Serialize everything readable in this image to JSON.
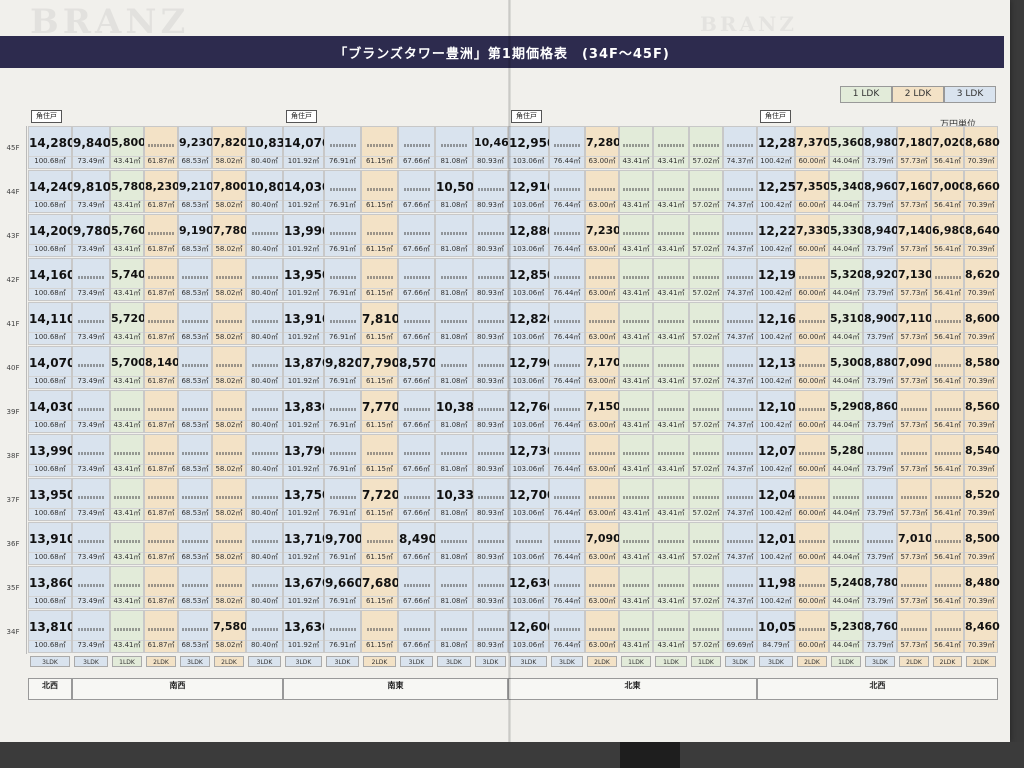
{
  "title": "「ブランズタワー豊洲」第1期価格表　(34F～45F)",
  "watermark": "BRANZ",
  "legend": [
    {
      "label": "1 LDK",
      "color": "#e2ebd9"
    },
    {
      "label": "2 LDK",
      "color": "#f3e2c6"
    },
    {
      "label": "3 LDK",
      "color": "#d9e3ee"
    }
  ],
  "unit_label": "万円単位",
  "corner_label": "角住戸",
  "columns": [
    {
      "area": "100.68㎡",
      "type": "3",
      "w": 44
    },
    {
      "area": "73.49㎡",
      "type": "3",
      "w": 38
    },
    {
      "area": "43.41㎡",
      "type": "1",
      "w": 34
    },
    {
      "area": "61.87㎡",
      "type": "2",
      "w": 34
    },
    {
      "area": "68.53㎡",
      "type": "3",
      "w": 34
    },
    {
      "area": "58.02㎡",
      "type": "2",
      "w": 34
    },
    {
      "area": "80.40㎡",
      "type": "3",
      "w": 37
    },
    {
      "area": "101.92㎡",
      "type": "3",
      "w": 41
    },
    {
      "area": "76.91㎡",
      "type": "3",
      "w": 37
    },
    {
      "area": "61.15㎡",
      "type": "2",
      "w": 37
    },
    {
      "area": "67.66㎡",
      "type": "3",
      "w": 37
    },
    {
      "area": "81.08㎡",
      "type": "3",
      "w": 38
    },
    {
      "area": "80.93㎡",
      "type": "3",
      "w": 35
    },
    {
      "area": "103.06㎡",
      "type": "3",
      "w": 41
    },
    {
      "area": "76.44㎡",
      "type": "3",
      "w": 36
    },
    {
      "area": "63.00㎡",
      "type": "2",
      "w": 34
    },
    {
      "area": "43.41㎡",
      "type": "1",
      "w": 34
    },
    {
      "area": "43.41㎡",
      "type": "1",
      "w": 36
    },
    {
      "area": "57.02㎡",
      "type": "1",
      "w": 34
    },
    {
      "area": "74.37㎡",
      "type": "3",
      "w": 34
    },
    {
      "area": "100.42㎡",
      "type": "3",
      "w": 38
    },
    {
      "area": "60.00㎡",
      "type": "2",
      "w": 34
    },
    {
      "area": "44.04㎡",
      "type": "1",
      "w": 34
    },
    {
      "area": "73.79㎡",
      "type": "3",
      "w": 34
    },
    {
      "area": "57.73㎡",
      "type": "2",
      "w": 34
    },
    {
      "area": "56.41㎡",
      "type": "2",
      "w": 33
    },
    {
      "area": "70.39㎡",
      "type": "2",
      "w": 34
    }
  ],
  "rows": [
    {
      "floor": "45F",
      "prices": [
        "14,280",
        "9,840",
        "5,800",
        "",
        "9,230",
        "7,820",
        "10,830",
        "14,070",
        "",
        "",
        "",
        "",
        "10,460",
        "12,950",
        "",
        "7,280",
        "",
        "",
        "",
        "",
        "12,280",
        "7,370",
        "5,360",
        "8,980",
        "7,180",
        "7,020",
        "8,680"
      ]
    },
    {
      "floor": "44F",
      "prices": [
        "14,240",
        "9,810",
        "5,780",
        "8,230",
        "9,210",
        "7,800",
        "10,800",
        "14,030",
        "",
        "",
        "",
        "10,500",
        "",
        "12,910",
        "",
        "",
        "",
        "",
        "",
        "",
        "12,250",
        "7,350",
        "5,340",
        "8,960",
        "7,160",
        "7,000",
        "8,660"
      ]
    },
    {
      "floor": "43F",
      "prices": [
        "14,200",
        "9,780",
        "5,760",
        "",
        "9,190",
        "7,780",
        "",
        "13,990",
        "",
        "",
        "",
        "",
        "",
        "12,880",
        "",
        "7,230",
        "",
        "",
        "",
        "",
        "12,220",
        "7,330",
        "5,330",
        "8,940",
        "7,140",
        "6,980",
        "8,640"
      ]
    },
    {
      "floor": "42F",
      "prices": [
        "14,160",
        "",
        "5,740",
        "",
        "",
        "",
        "",
        "13,950",
        "",
        "",
        "",
        "",
        "",
        "12,850",
        "",
        "",
        "",
        "",
        "",
        "",
        "12,190",
        "",
        "5,320",
        "8,920",
        "7,130",
        "",
        "8,620"
      ]
    },
    {
      "floor": "41F",
      "prices": [
        "14,110",
        "",
        "5,720",
        "",
        "",
        "",
        "",
        "13,910",
        "",
        "7,810",
        "",
        "",
        "",
        "12,820",
        "",
        "",
        "",
        "",
        "",
        "",
        "12,160",
        "",
        "5,310",
        "8,900",
        "7,110",
        "",
        "8,600"
      ]
    },
    {
      "floor": "40F",
      "prices": [
        "14,070",
        "",
        "5,700",
        "8,140",
        "",
        "",
        "",
        "13,870",
        "9,820",
        "7,790",
        "8,570",
        "",
        "",
        "12,790",
        "",
        "7,170",
        "",
        "",
        "",
        "",
        "12,130",
        "",
        "5,300",
        "8,880",
        "7,090",
        "",
        "8,580"
      ]
    },
    {
      "floor": "39F",
      "prices": [
        "14,030",
        "",
        "",
        "",
        "",
        "",
        "",
        "13,830",
        "",
        "7,770",
        "",
        "10,380",
        "",
        "12,760",
        "",
        "7,150",
        "",
        "",
        "",
        "",
        "12,100",
        "",
        "5,290",
        "8,860",
        "",
        "",
        "8,560"
      ]
    },
    {
      "floor": "38F",
      "prices": [
        "13,990",
        "",
        "",
        "",
        "",
        "",
        "",
        "13,790",
        "",
        "",
        "",
        "",
        "",
        "12,730",
        "",
        "",
        "",
        "",
        "",
        "",
        "12,070",
        "",
        "5,280",
        "",
        "",
        "",
        "8,540"
      ]
    },
    {
      "floor": "37F",
      "prices": [
        "13,950",
        "",
        "",
        "",
        "",
        "",
        "",
        "13,750",
        "",
        "7,720",
        "",
        "10,330",
        "",
        "12,700",
        "",
        "",
        "",
        "",
        "",
        "",
        "12,040",
        "",
        "",
        "",
        "",
        "",
        "8,520"
      ]
    },
    {
      "floor": "36F",
      "prices": [
        "13,910",
        "",
        "",
        "",
        "",
        "",
        "",
        "13,710",
        "9,700",
        "",
        "8,490",
        "",
        "",
        "",
        "",
        "7,090",
        "",
        "",
        "",
        "",
        "12,010",
        "",
        "",
        "",
        "7,010",
        "",
        "8,500"
      ]
    },
    {
      "floor": "35F",
      "prices": [
        "13,860",
        "",
        "",
        "",
        "",
        "",
        "",
        "13,670",
        "9,660",
        "7,680",
        "",
        "",
        "",
        "12,630",
        "",
        "",
        "",
        "",
        "",
        "",
        "11,980",
        "",
        "5,240",
        "8,780",
        "",
        "",
        "8,480"
      ]
    },
    {
      "floor": "34F",
      "prices": [
        "13,810",
        "",
        "",
        "",
        "",
        "7,580",
        "",
        "13,630",
        "",
        "",
        "",
        "",
        "",
        "12,600",
        "",
        "",
        "",
        "",
        "",
        "",
        "10,050",
        "",
        "5,230",
        "8,760",
        "",
        "",
        "8,460"
      ]
    }
  ],
  "special_areas": {
    "34F_19": "69.69㎡",
    "34F_20": "84.79㎡"
  },
  "type_labels": [
    "3LDK",
    "3LDK",
    "1LDK",
    "2LDK",
    "3LDK",
    "2LDK",
    "3LDK",
    "3LDK",
    "3LDK",
    "2LDK",
    "3LDK",
    "3LDK",
    "3LDK",
    "3LDK",
    "3LDK",
    "2LDK",
    "1LDK",
    "1LDK",
    "1LDK",
    "3LDK",
    "3LDK",
    "2LDK",
    "1LDK",
    "3LDK",
    "2LDK",
    "2LDK",
    "2LDK"
  ],
  "directions": [
    "北西",
    "南西",
    "南東",
    "北東",
    "北西"
  ]
}
